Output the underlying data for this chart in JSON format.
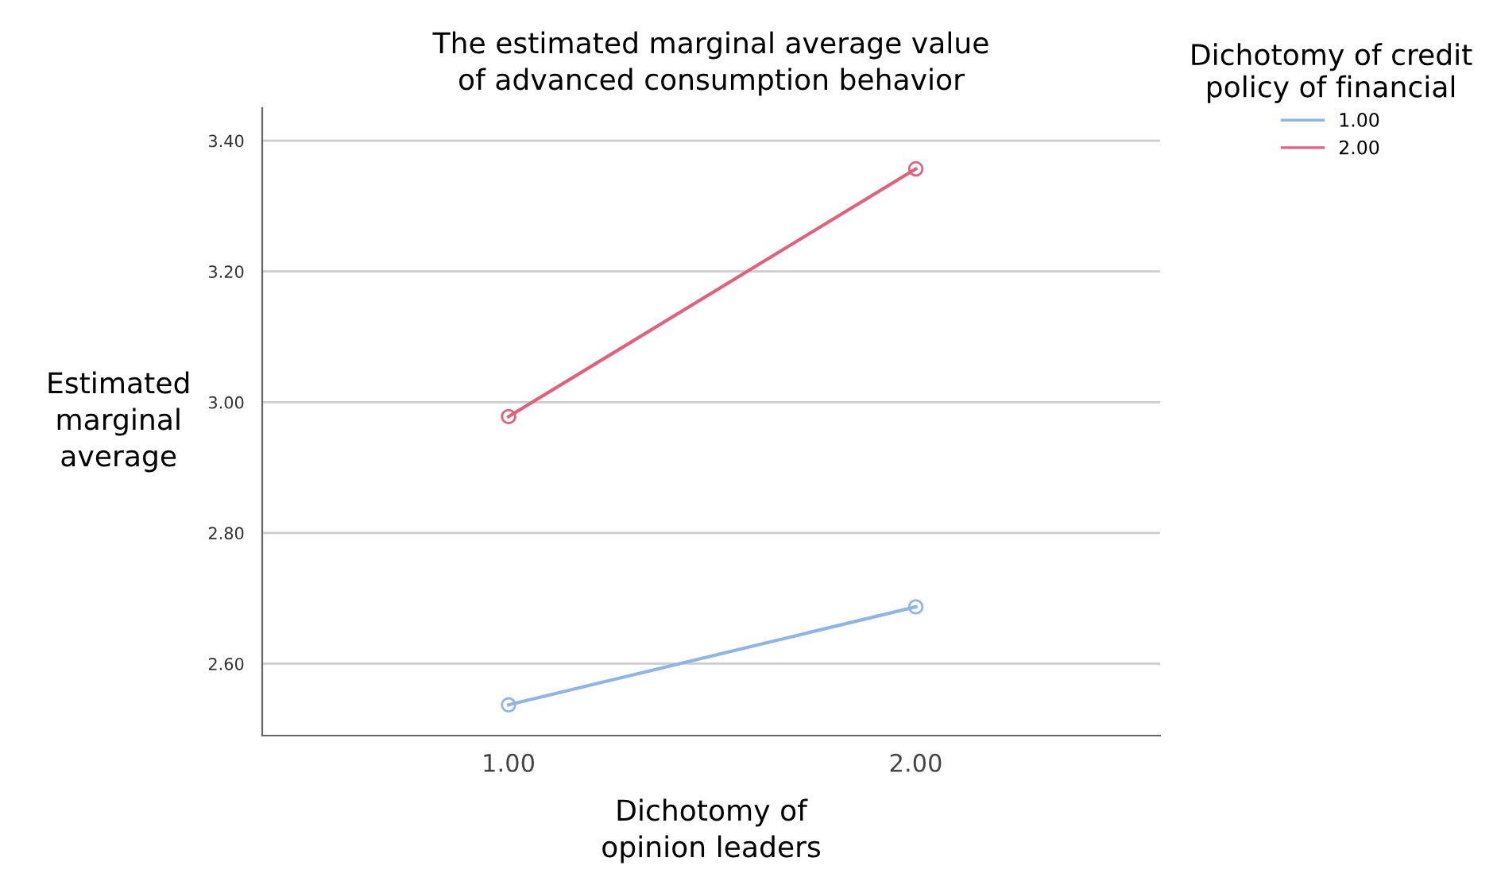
{
  "chart_data": {
    "type": "line",
    "title": "The estimated marginal average value\nof advanced consumption behavior",
    "xlabel": "Dichotomy of\nopinion leaders",
    "ylabel": "Estimated\nmarginal\naverage",
    "legend_title": "Dichotomy of credit\npolicy of financial",
    "categories": [
      "1.00",
      "2.00"
    ],
    "series": [
      {
        "name": "1.00",
        "color": "#8fb4e6",
        "values": [
          2.537,
          2.687
        ]
      },
      {
        "name": "2.00",
        "color": "#e0607e",
        "values": [
          2.978,
          3.357
        ]
      }
    ],
    "ylim": [
      2.49,
      3.45
    ],
    "yticks": [
      {
        "value": 2.6,
        "label": "2.60"
      },
      {
        "value": 2.8,
        "label": "2.80"
      },
      {
        "value": 3.0,
        "label": "3.00"
      },
      {
        "value": 3.2,
        "label": "3.20"
      },
      {
        "value": 3.4,
        "label": "3.40"
      }
    ],
    "grid": "y",
    "legend": "top right",
    "marker": "circle",
    "line_style": "solid"
  }
}
